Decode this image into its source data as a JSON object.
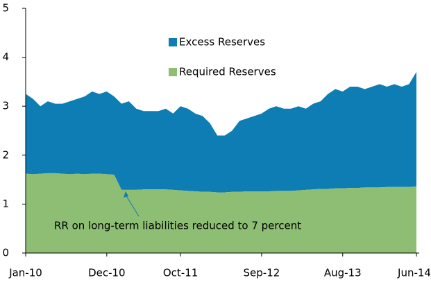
{
  "chart_data": {
    "type": "stacked_area",
    "categories": [
      "Jan-10",
      null,
      null,
      null,
      null,
      null,
      null,
      null,
      null,
      null,
      null,
      "Dec-10",
      null,
      null,
      null,
      null,
      null,
      null,
      null,
      null,
      null,
      "Oct-11",
      null,
      null,
      null,
      null,
      null,
      null,
      null,
      null,
      null,
      null,
      "Sep-12",
      null,
      null,
      null,
      null,
      null,
      null,
      null,
      null,
      null,
      null,
      "Aug-13",
      null,
      null,
      null,
      null,
      null,
      null,
      null,
      null,
      null,
      "Jun-14"
    ],
    "series": [
      {
        "name": "Required Reserves",
        "color": "#8dbe74",
        "values": [
          1.62,
          1.61,
          1.62,
          1.63,
          1.63,
          1.62,
          1.61,
          1.62,
          1.61,
          1.62,
          1.62,
          1.61,
          1.6,
          1.29,
          1.29,
          1.29,
          1.3,
          1.3,
          1.3,
          1.3,
          1.29,
          1.28,
          1.27,
          1.26,
          1.25,
          1.25,
          1.24,
          1.24,
          1.25,
          1.25,
          1.26,
          1.26,
          1.26,
          1.26,
          1.27,
          1.27,
          1.27,
          1.28,
          1.29,
          1.3,
          1.31,
          1.31,
          1.32,
          1.32,
          1.33,
          1.33,
          1.34,
          1.34,
          1.34,
          1.35,
          1.35,
          1.35,
          1.35,
          1.36
        ]
      },
      {
        "name": "Excess Reserves",
        "color": "#0e7db3",
        "values": [
          1.63,
          1.54,
          1.38,
          1.47,
          1.42,
          1.43,
          1.49,
          1.53,
          1.59,
          1.68,
          1.63,
          1.69,
          1.6,
          1.76,
          1.81,
          1.66,
          1.6,
          1.6,
          1.6,
          1.65,
          1.56,
          1.72,
          1.68,
          1.59,
          1.55,
          1.4,
          1.16,
          1.16,
          1.25,
          1.45,
          1.49,
          1.54,
          1.59,
          1.69,
          1.73,
          1.68,
          1.68,
          1.72,
          1.66,
          1.75,
          1.79,
          1.94,
          2.03,
          1.98,
          2.07,
          2.07,
          2.01,
          2.06,
          2.11,
          2.05,
          2.1,
          2.05,
          2.1,
          2.34
        ]
      }
    ],
    "ylim": [
      0,
      5
    ],
    "yticks": [
      0,
      1,
      2,
      3,
      4,
      5
    ],
    "grid": false,
    "annotation": "RR on long-term liabilities reduced to 7 percent"
  }
}
